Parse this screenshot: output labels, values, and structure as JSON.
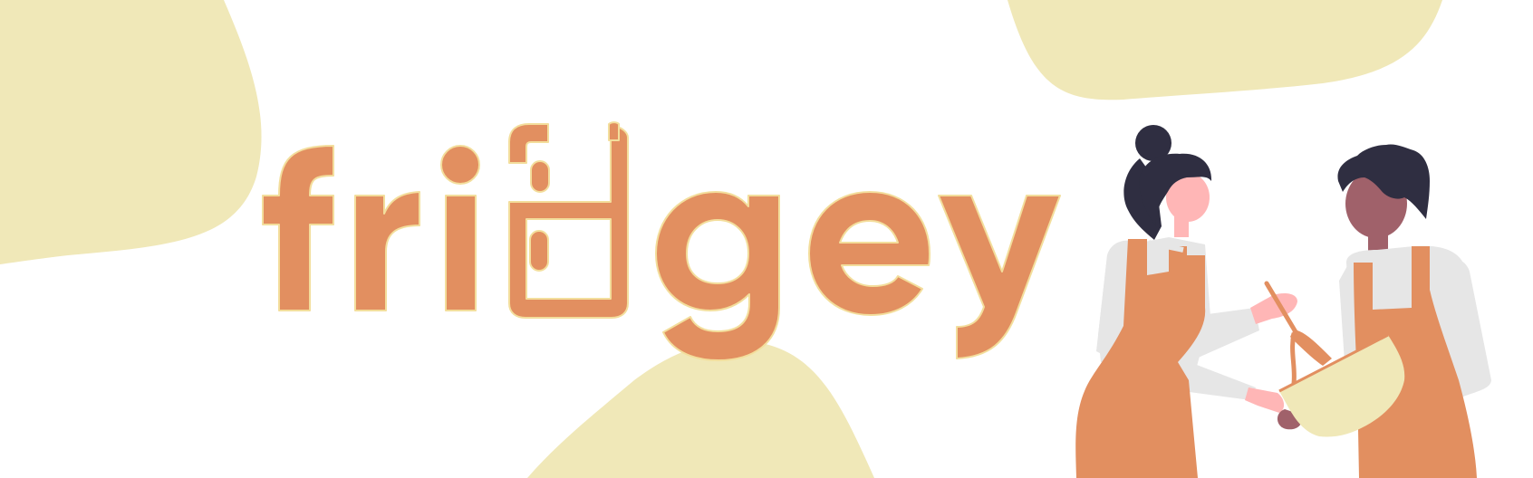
{
  "logo": {
    "wordmark": "fridgey",
    "letter_icon": "fridge-icon",
    "colors": {
      "primary_orange": "#E28F60",
      "outline_cream": "#F3DE9C",
      "blob_cream": "#F0E8B8",
      "background": "#FFFFFF"
    }
  },
  "illustration": {
    "description_icons": [
      "woman-cook-figure",
      "man-cook-figure",
      "mixing-bowl-icon",
      "whisk-icon"
    ],
    "colors": {
      "apron": "#E28F60",
      "shirt": "#E6E6E6",
      "hair": "#2F2E41",
      "skin_light": "#FFB6B6",
      "skin_dark": "#A0616A",
      "bowl": "#F0E8B8"
    }
  }
}
